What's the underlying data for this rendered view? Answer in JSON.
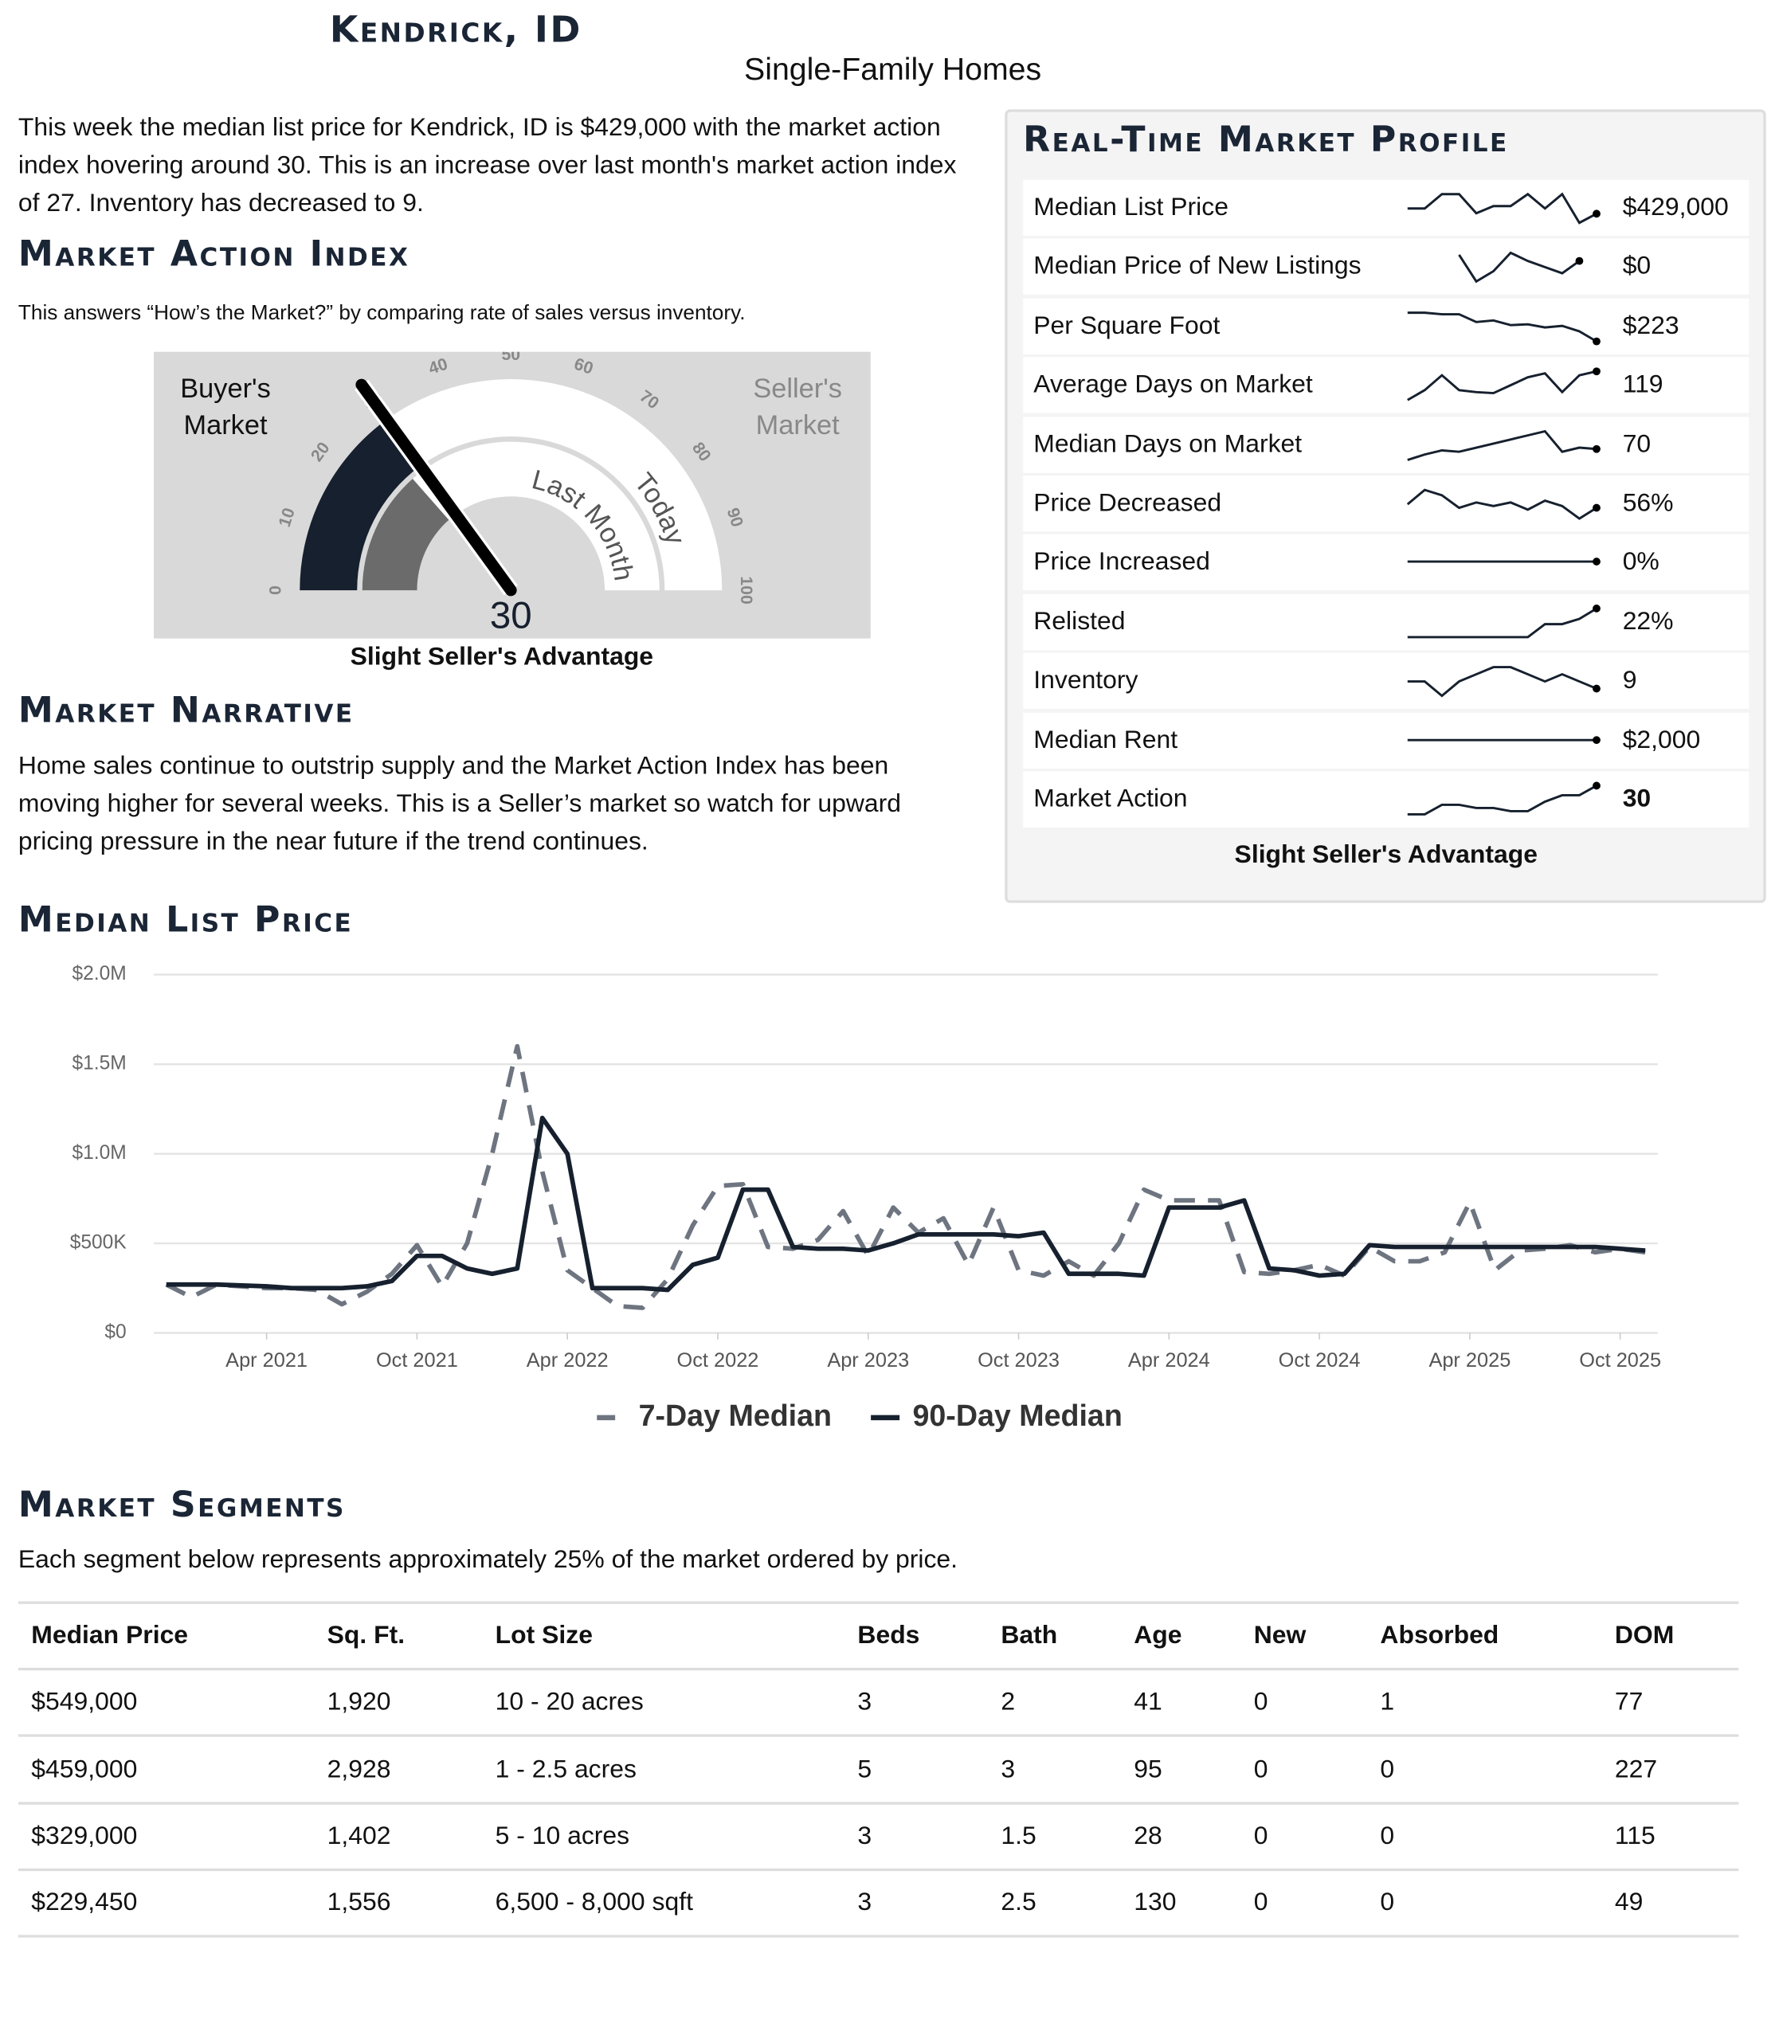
{
  "header": {
    "title": "Kendrick, ID",
    "subtitle": "Single-Family Homes"
  },
  "intro": "This week the median list price for Kendrick, ID is $429,000 with the market action index hovering around 30. This is an increase over last month's market action index of 27. Inventory has decreased to 9.",
  "market_action_index": {
    "heading": "Market Action Index",
    "description": "This answers “How’s the Market?” by comparing rate of sales versus inventory.",
    "gauge": {
      "type": "gauge",
      "value": 30,
      "last_month": 27,
      "ticks": [
        0,
        10,
        20,
        30,
        40,
        50,
        60,
        70,
        80,
        90,
        100
      ],
      "buyers_label": "Buyer's Market",
      "sellers_label": "Seller's Market",
      "last_month_label": "Last Month",
      "today_label": "Today"
    },
    "caption": "Slight Seller's Advantage"
  },
  "market_narrative": {
    "heading": "Market Narrative",
    "text": "Home sales continue to outstrip supply and the Market Action Index has been moving higher for several weeks. This is a Seller’s market so watch for upward pricing pressure in the near future if the trend continues."
  },
  "market_profile": {
    "heading": "Real-Time Market Profile",
    "rows": [
      {
        "label": "Median List Price",
        "value": "$429,000",
        "trend": [
          440,
          440,
          470,
          470,
          430,
          445,
          445,
          470,
          440,
          470,
          410,
          429
        ]
      },
      {
        "label": "Median Price of New Listings",
        "value": "$0",
        "trend": [
          null,
          null,
          null,
          550,
          420,
          470,
          560,
          520,
          490,
          460,
          520,
          null
        ]
      },
      {
        "label": "Per Square Foot",
        "value": "$223",
        "trend": [
          260,
          260,
          258,
          258,
          248,
          250,
          244,
          245,
          241,
          243,
          236,
          223
        ]
      },
      {
        "label": "Average Days on Market",
        "value": "119",
        "trend": [
          90,
          100,
          115,
          100,
          98,
          97,
          105,
          113,
          117,
          98,
          115,
          119
        ]
      },
      {
        "label": "Median Days on Market",
        "value": "70",
        "trend": [
          62,
          66,
          69,
          68,
          71,
          74,
          77,
          80,
          83,
          68,
          71,
          70
        ]
      },
      {
        "label": "Price Decreased",
        "value": "56%",
        "trend": [
          58,
          66,
          63,
          56,
          59,
          57,
          59,
          55,
          60,
          57,
          50,
          56
        ]
      },
      {
        "label": "Price Increased",
        "value": "0%",
        "trend": [
          0,
          0,
          0,
          0,
          0,
          0,
          0,
          0,
          0,
          0,
          0,
          0
        ]
      },
      {
        "label": "Relisted",
        "value": "22%",
        "trend": [
          0,
          0,
          0,
          0,
          0,
          0,
          0,
          0,
          10,
          10,
          14,
          22
        ]
      },
      {
        "label": "Inventory",
        "value": "9",
        "trend": [
          10,
          10,
          8,
          10,
          11,
          12,
          12,
          11,
          10,
          11,
          10,
          9
        ]
      },
      {
        "label": "Median Rent",
        "value": "$2,000",
        "trend": [
          2000,
          2000,
          2000,
          2000,
          2000,
          2000,
          2000,
          2000,
          2000,
          2000,
          2000,
          2000
        ]
      },
      {
        "label": "Market Action",
        "value": "30",
        "trend": [
          21,
          21,
          24,
          24,
          23,
          23,
          22,
          22,
          25,
          27,
          27,
          30
        ]
      }
    ],
    "caption": "Slight Seller's Advantage"
  },
  "median_list_price": {
    "heading": "Median List Price",
    "chart_data": {
      "type": "line",
      "x": [
        "2020-12",
        "2021-01",
        "2021-02",
        "2021-03",
        "2021-04",
        "2021-05",
        "2021-06",
        "2021-07",
        "2021-08",
        "2021-09",
        "2021-10",
        "2021-11",
        "2021-12",
        "2022-01",
        "2022-02",
        "2022-03",
        "2022-04",
        "2022-05",
        "2022-06",
        "2022-07",
        "2022-08",
        "2022-09",
        "2022-10",
        "2022-11",
        "2022-12",
        "2023-01",
        "2023-02",
        "2023-03",
        "2023-04",
        "2023-05",
        "2023-06",
        "2023-07",
        "2023-08",
        "2023-09",
        "2023-10",
        "2023-11",
        "2023-12",
        "2024-01",
        "2024-02",
        "2024-03",
        "2024-04",
        "2024-05",
        "2024-06",
        "2024-07",
        "2024-08",
        "2024-09",
        "2024-10",
        "2024-11",
        "2024-12",
        "2025-01",
        "2025-02",
        "2025-03",
        "2025-04",
        "2025-05",
        "2025-06",
        "2025-07",
        "2025-08",
        "2025-09",
        "2025-10",
        "2025-11"
      ],
      "series": [
        {
          "name": "7-Day Median",
          "color": "#6e7580",
          "dashed": true,
          "values": [
            270000,
            200000,
            270000,
            260000,
            250000,
            250000,
            240000,
            160000,
            230000,
            330000,
            490000,
            260000,
            500000,
            1000000,
            1600000,
            900000,
            350000,
            250000,
            150000,
            140000,
            300000,
            600000,
            820000,
            830000,
            480000,
            470000,
            520000,
            680000,
            430000,
            700000,
            560000,
            640000,
            380000,
            700000,
            350000,
            320000,
            400000,
            320000,
            500000,
            800000,
            740000,
            740000,
            740000,
            340000,
            330000,
            350000,
            380000,
            320000,
            480000,
            400000,
            400000,
            450000,
            730000,
            350000,
            460000,
            470000,
            490000,
            450000,
            470000,
            450000
          ]
        },
        {
          "name": "90-Day Median",
          "color": "#16202e",
          "dashed": false,
          "values": [
            270000,
            270000,
            270000,
            265000,
            260000,
            250000,
            250000,
            250000,
            260000,
            290000,
            430000,
            430000,
            360000,
            330000,
            360000,
            1200000,
            1000000,
            250000,
            250000,
            250000,
            240000,
            380000,
            420000,
            800000,
            800000,
            480000,
            470000,
            470000,
            460000,
            500000,
            550000,
            550000,
            550000,
            550000,
            540000,
            560000,
            330000,
            330000,
            330000,
            320000,
            700000,
            700000,
            700000,
            740000,
            360000,
            350000,
            320000,
            330000,
            490000,
            480000,
            480000,
            480000,
            480000,
            480000,
            480000,
            480000,
            480000,
            480000,
            470000,
            460000
          ]
        }
      ],
      "ylim": [
        0,
        2000000
      ],
      "yticks": [
        {
          "value": 0,
          "label": "$0"
        },
        {
          "value": 500000,
          "label": "$500K"
        },
        {
          "value": 1000000,
          "label": "$1.0M"
        },
        {
          "value": 1500000,
          "label": "$1.5M"
        },
        {
          "value": 2000000,
          "label": "$2.0M"
        }
      ],
      "xticks": [
        {
          "value": "2021-04",
          "label": "Apr 2021"
        },
        {
          "value": "2021-10",
          "label": "Oct 2021"
        },
        {
          "value": "2022-04",
          "label": "Apr 2022"
        },
        {
          "value": "2022-10",
          "label": "Oct 2022"
        },
        {
          "value": "2023-04",
          "label": "Apr 2023"
        },
        {
          "value": "2023-10",
          "label": "Oct 2023"
        },
        {
          "value": "2024-04",
          "label": "Apr 2024"
        },
        {
          "value": "2024-10",
          "label": "Oct 2024"
        },
        {
          "value": "2025-04",
          "label": "Apr 2025"
        },
        {
          "value": "2025-10",
          "label": "Oct 2025"
        }
      ],
      "grid": true,
      "legend": "bottom"
    }
  },
  "market_segments": {
    "heading": "Market Segments",
    "description": "Each segment below represents approximately 25% of the market ordered by price.",
    "columns": [
      "Median Price",
      "Sq. Ft.",
      "Lot Size",
      "Beds",
      "Bath",
      "Age",
      "New",
      "Absorbed",
      "DOM"
    ],
    "rows": [
      [
        "$549,000",
        "1,920",
        "10 - 20 acres",
        "3",
        "2",
        "41",
        "0",
        "1",
        "77"
      ],
      [
        "$459,000",
        "2,928",
        "1 - 2.5 acres",
        "5",
        "3",
        "95",
        "0",
        "0",
        "227"
      ],
      [
        "$329,000",
        "1,402",
        "5 - 10 acres",
        "3",
        "1.5",
        "28",
        "0",
        "0",
        "115"
      ],
      [
        "$229,450",
        "1,556",
        "6,500 - 8,000 sqft",
        "3",
        "2.5",
        "130",
        "0",
        "0",
        "49"
      ]
    ]
  }
}
